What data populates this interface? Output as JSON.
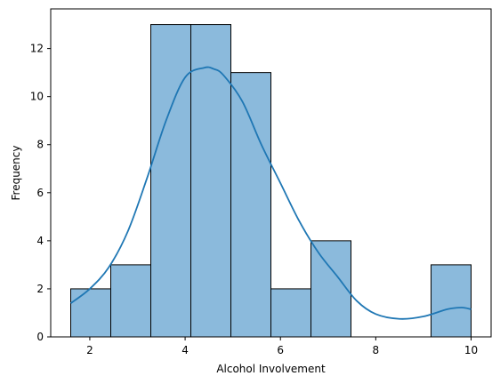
{
  "chart_data": {
    "type": "bar",
    "subtype": "histogram-with-kde",
    "title": "",
    "xlabel": "Alcohol Involvement",
    "ylabel": "Frequency",
    "xlim": [
      1.18,
      10.42
    ],
    "ylim": [
      0,
      13.65
    ],
    "xticks": [
      2,
      4,
      6,
      8,
      10
    ],
    "yticks": [
      0,
      2,
      4,
      6,
      8,
      10,
      12
    ],
    "bins": [
      {
        "x0": 1.6,
        "x1": 2.44,
        "count": 2
      },
      {
        "x0": 2.44,
        "x1": 3.28,
        "count": 3
      },
      {
        "x0": 3.28,
        "x1": 4.12,
        "count": 13
      },
      {
        "x0": 4.12,
        "x1": 4.96,
        "count": 13
      },
      {
        "x0": 4.96,
        "x1": 5.8,
        "count": 11
      },
      {
        "x0": 5.8,
        "x1": 6.64,
        "count": 2
      },
      {
        "x0": 6.64,
        "x1": 7.48,
        "count": 4
      },
      {
        "x0": 7.48,
        "x1": 8.32,
        "count": 0
      },
      {
        "x0": 8.32,
        "x1": 9.16,
        "count": 0
      },
      {
        "x0": 9.16,
        "x1": 10.0,
        "count": 3
      }
    ],
    "kde": {
      "x": [
        1.6,
        2.0,
        2.4,
        2.8,
        3.2,
        3.6,
        4.0,
        4.4,
        4.6,
        4.8,
        5.2,
        5.6,
        6.0,
        6.4,
        6.8,
        7.2,
        7.6,
        8.0,
        8.5,
        9.0,
        9.5,
        9.8,
        10.0
      ],
      "y": [
        1.4,
        2.0,
        2.9,
        4.4,
        6.6,
        9.0,
        10.8,
        11.2,
        11.15,
        10.9,
        9.8,
        8.0,
        6.4,
        4.8,
        3.5,
        2.5,
        1.5,
        0.95,
        0.75,
        0.85,
        1.15,
        1.22,
        1.15
      ]
    },
    "colors": {
      "bar_fill": "#8bbadc",
      "bar_edge": "#000000",
      "kde_line": "#1f77b4"
    },
    "grid": false,
    "legend": null
  }
}
